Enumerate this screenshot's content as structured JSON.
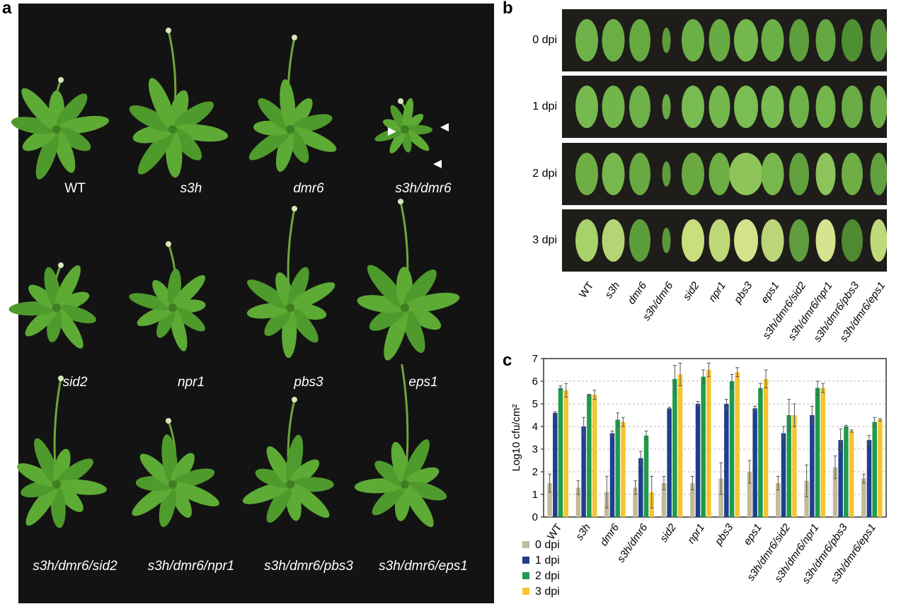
{
  "panels": {
    "a": "a",
    "b": "b",
    "c": "c"
  },
  "panel_a": {
    "genotypes": [
      "WT",
      "s3h",
      "dmr6",
      "s3h/dmr6",
      "sid2",
      "npr1",
      "pbs3",
      "eps1",
      "s3h/dmr6/sid2",
      "s3h/dmr6/npr1",
      "s3h/dmr6/pbs3",
      "s3h/dmr6/eps1"
    ]
  },
  "panel_b": {
    "rows": [
      "0 dpi",
      "1 dpi",
      "2 dpi",
      "3 dpi"
    ],
    "genotypes": [
      "WT",
      "s3h",
      "dmr6",
      "s3h/dmr6",
      "sid2",
      "npr1",
      "pbs3",
      "eps1",
      "s3h/dmr6/sid2",
      "s3h/dmr6/npr1",
      "s3h/dmr6/pbs3",
      "s3h/dmr6/eps1"
    ]
  },
  "chart_data": {
    "type": "bar",
    "ylabel": "Log10 cfu/cm²",
    "ylim": [
      0,
      7
    ],
    "yticks": [
      "0",
      "1",
      "2",
      "3",
      "4",
      "5",
      "6",
      "7"
    ],
    "grid": "horizontal dashed",
    "legend_position": "bottom-left",
    "categories": [
      "WT",
      "s3h",
      "dmr6",
      "s3h/dmr6",
      "sid2",
      "npr1",
      "pbs3",
      "eps1",
      "s3h/dmr6/sid2",
      "s3h/dmr6/npr1",
      "s3h/dmr6/pbs3",
      "s3h/dmr6/eps1"
    ],
    "series": [
      {
        "name": "0 dpi",
        "color": "#c3bb98",
        "values": [
          1.5,
          1.3,
          1.1,
          1.3,
          1.5,
          1.5,
          1.7,
          2.0,
          1.5,
          1.6,
          2.2,
          1.7
        ],
        "errors": [
          0.4,
          0.3,
          0.7,
          0.3,
          0.3,
          0.3,
          0.7,
          0.5,
          0.3,
          0.7,
          0.5,
          0.2
        ]
      },
      {
        "name": "1 dpi",
        "color": "#1f3f8e",
        "values": [
          4.6,
          4.0,
          3.7,
          2.6,
          4.8,
          5.0,
          5.0,
          4.8,
          3.7,
          4.5,
          3.4,
          3.4
        ],
        "errors": [
          0.05,
          0.4,
          0.1,
          0.3,
          0.05,
          0.1,
          0.2,
          0.1,
          0.3,
          0.4,
          0.5,
          0.2
        ]
      },
      {
        "name": "2 dpi",
        "color": "#1e9b4b",
        "values": [
          5.7,
          5.4,
          4.3,
          3.6,
          6.1,
          6.2,
          6.0,
          5.7,
          4.5,
          5.7,
          4.0,
          4.2
        ],
        "errors": [
          0.1,
          0.02,
          0.3,
          0.2,
          0.6,
          0.3,
          0.3,
          0.2,
          0.7,
          0.3,
          0.05,
          0.2
        ]
      },
      {
        "name": "3 dpi",
        "color": "#f5c431",
        "values": [
          5.6,
          5.4,
          4.2,
          1.1,
          6.3,
          6.5,
          6.4,
          6.1,
          4.5,
          5.7,
          3.8,
          4.3
        ],
        "errors": [
          0.3,
          0.2,
          0.2,
          0.7,
          0.5,
          0.3,
          0.2,
          0.4,
          0.5,
          0.2,
          0.05,
          0.05
        ]
      }
    ]
  }
}
